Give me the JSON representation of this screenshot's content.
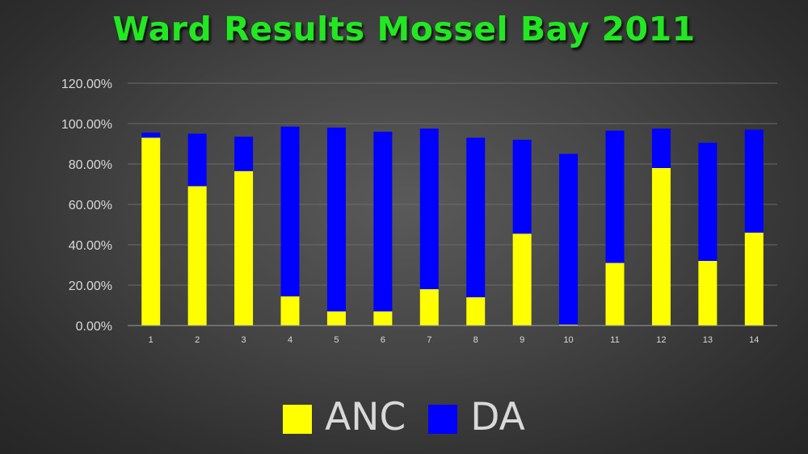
{
  "chart_data": {
    "type": "bar",
    "stacked": true,
    "title": "Ward Results Mossel Bay 2011",
    "xlabel": "",
    "ylabel": "",
    "categories": [
      "1",
      "2",
      "3",
      "4",
      "5",
      "6",
      "7",
      "8",
      "9",
      "10",
      "11",
      "12",
      "13",
      "14"
    ],
    "yticks": [
      "0.00%",
      "20.00%",
      "40.00%",
      "60.00%",
      "80.00%",
      "100.00%",
      "120.00%"
    ],
    "ylim": [
      0,
      1.2
    ],
    "grid": true,
    "legend_position": "bottom",
    "series": [
      {
        "name": "ANC",
        "color": "#ffff00",
        "values": [
          0.93,
          0.69,
          0.765,
          0.145,
          0.07,
          0.07,
          0.18,
          0.14,
          0.455,
          0.005,
          0.31,
          0.78,
          0.32,
          0.46
        ]
      },
      {
        "name": "DA",
        "color": "#0000ff",
        "values": [
          0.025,
          0.26,
          0.17,
          0.84,
          0.91,
          0.89,
          0.795,
          0.79,
          0.465,
          0.845,
          0.655,
          0.195,
          0.585,
          0.51
        ]
      }
    ]
  }
}
